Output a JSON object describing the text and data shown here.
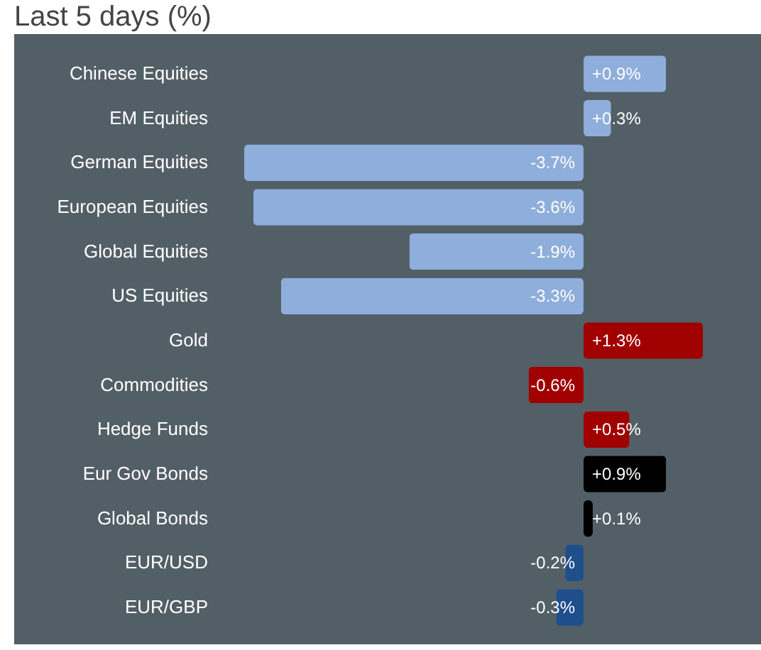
{
  "chart_data": {
    "type": "bar",
    "orientation": "horizontal",
    "title": "Last 5 days (%)",
    "categories": [
      "Chinese Equities",
      "EM Equities",
      "German Equities",
      "European Equities",
      "Global Equities",
      "US Equities",
      "Gold",
      "Commodities",
      "Hedge Funds",
      "Eur Gov Bonds",
      "Global Bonds",
      "EUR/USD",
      "EUR/GBP"
    ],
    "values": [
      0.9,
      0.3,
      -3.7,
      -3.6,
      -1.9,
      -3.3,
      1.3,
      -0.6,
      0.5,
      0.9,
      0.1,
      -0.2,
      -0.3
    ],
    "colors": [
      "#8eaedb",
      "#8eaedb",
      "#8eaedb",
      "#8eaedb",
      "#8eaedb",
      "#8eaedb",
      "#a00000",
      "#a00000",
      "#a00000",
      "#000000",
      "#000000",
      "#1f4e8c",
      "#1f4e8c"
    ],
    "value_labels": [
      "+0.9%",
      "+0.3%",
      "-3.7%",
      "-3.6%",
      "-1.9%",
      "-3.3%",
      "+1.3%",
      "-0.6%",
      "+0.5%",
      "+0.9%",
      "+0.1%",
      "-0.2%",
      "-0.3%"
    ],
    "data_labels": false
  }
}
